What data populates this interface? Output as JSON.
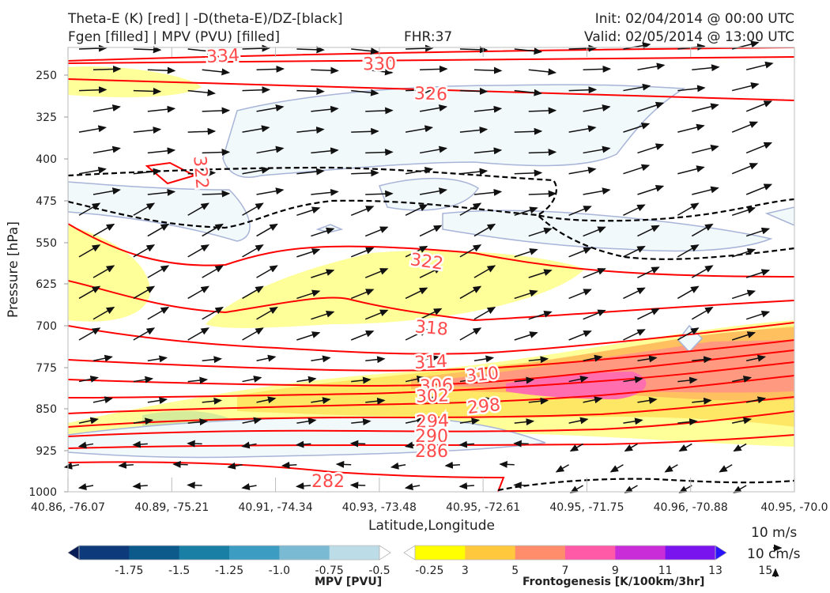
{
  "header": {
    "title_left_1": "Theta-E (K) [red] | -D(theta-E)/DZ-[black]",
    "title_left_2": "Fgen [filled] | MPV (PVU) [filled]",
    "fhr": "FHR:37",
    "init": "Init: 02/04/2014 @ 00:00 UTC",
    "valid": "Valid: 02/05/2014 @ 13:00 UTC"
  },
  "chart_data": {
    "type": "cross-section",
    "xlabel": "Latitude,Longitude",
    "ylabel": "Pressure [hPa]",
    "x_ticks": [
      "40.86, -76.07",
      "40.89, -75.21",
      "40.91, -74.34",
      "40.93, -73.48",
      "40.95, -72.61",
      "40.95, -71.75",
      "40.96, -70.88",
      "40.95, -70.0"
    ],
    "y_ticks": [
      250,
      325,
      400,
      475,
      550,
      625,
      700,
      775,
      850,
      925,
      1000
    ],
    "ylim": [
      1000,
      200
    ],
    "y_scale": "log-pressure",
    "grid": false,
    "theta_e_contour_labels": [
      334,
      330,
      326,
      322,
      322,
      318,
      314,
      310,
      306,
      302,
      298,
      294,
      290,
      286,
      282
    ],
    "theta_e_color": "#ff0000",
    "dthetae_dz_color": "#000000",
    "mpv_colorbar": {
      "label": "MPV [PVU]",
      "tick_labels": [
        "-1.75",
        "-1.5",
        "-1.25",
        "-1.0",
        "-0.75",
        "-0.5",
        "-0.25"
      ],
      "colors": [
        "#081d58",
        "#0c3a7a",
        "#0c5a8c",
        "#1a7fa5",
        "#3d9cc1",
        "#7bbad3",
        "#bcdde7",
        "#ffffff"
      ]
    },
    "fgen_colorbar": {
      "label": "Frontogenesis [K/100km/3hr]",
      "tick_labels": [
        "3",
        "5",
        "7",
        "9",
        "11",
        "13",
        "15"
      ],
      "colors": [
        "#ffffff",
        "#ffff00",
        "#ffc83d",
        "#ff8c6a",
        "#ff5aa8",
        "#c82dd7",
        "#7a14ee",
        "#2a14ff"
      ]
    },
    "vector_key": {
      "horizontal": "10 m/s",
      "vertical": "10 cm/s"
    }
  }
}
